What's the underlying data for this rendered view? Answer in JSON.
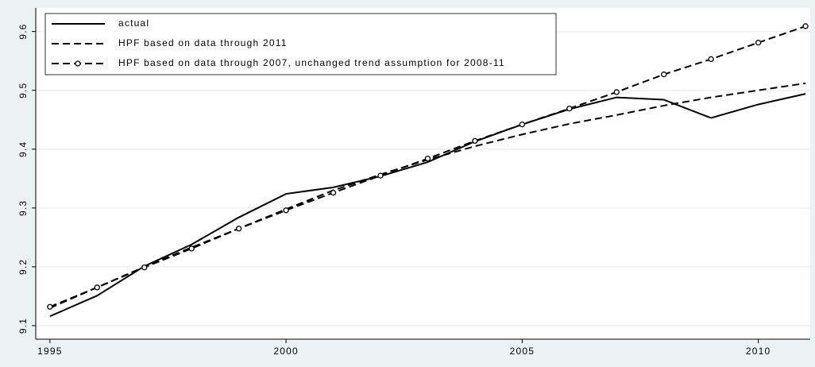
{
  "chart_data": {
    "type": "line",
    "x": [
      1995,
      1996,
      1997,
      1998,
      1999,
      2000,
      2001,
      2002,
      2003,
      2004,
      2005,
      2006,
      2007,
      2008,
      2009,
      2010,
      2011
    ],
    "series": [
      {
        "name": "actual",
        "color": "#000000",
        "style": "solid",
        "values": [
          9.116,
          9.151,
          9.201,
          9.238,
          9.284,
          9.324,
          9.335,
          9.354,
          9.378,
          9.413,
          9.442,
          9.468,
          9.488,
          9.484,
          9.453,
          9.476,
          9.494
        ]
      },
      {
        "name": "HPF based on data through 2011",
        "color": "#000000",
        "style": "dashed",
        "values": [
          9.13,
          9.165,
          9.2,
          9.233,
          9.265,
          9.298,
          9.33,
          9.357,
          9.382,
          9.405,
          9.425,
          9.443,
          9.458,
          9.474,
          9.488,
          9.5,
          9.512
        ]
      },
      {
        "name": "HPF based on data through 2007, unchanged trend assumption for 2008-11",
        "color": "#000000",
        "style": "dashed",
        "marker": "circle",
        "values": [
          9.132,
          9.165,
          9.199,
          9.231,
          9.265,
          9.296,
          9.326,
          9.355,
          9.384,
          9.414,
          9.442,
          9.469,
          9.497,
          9.527,
          9.553,
          9.581,
          9.609
        ]
      }
    ],
    "xlim": [
      1994.7,
      2011.1
    ],
    "xticks": [
      1995,
      2000,
      2005,
      2010
    ],
    "ylim": [
      9.077,
      9.64
    ],
    "yticks": [
      9.1,
      9.2,
      9.3,
      9.4,
      9.5,
      9.6
    ],
    "grid": true,
    "legend": "top-left"
  }
}
